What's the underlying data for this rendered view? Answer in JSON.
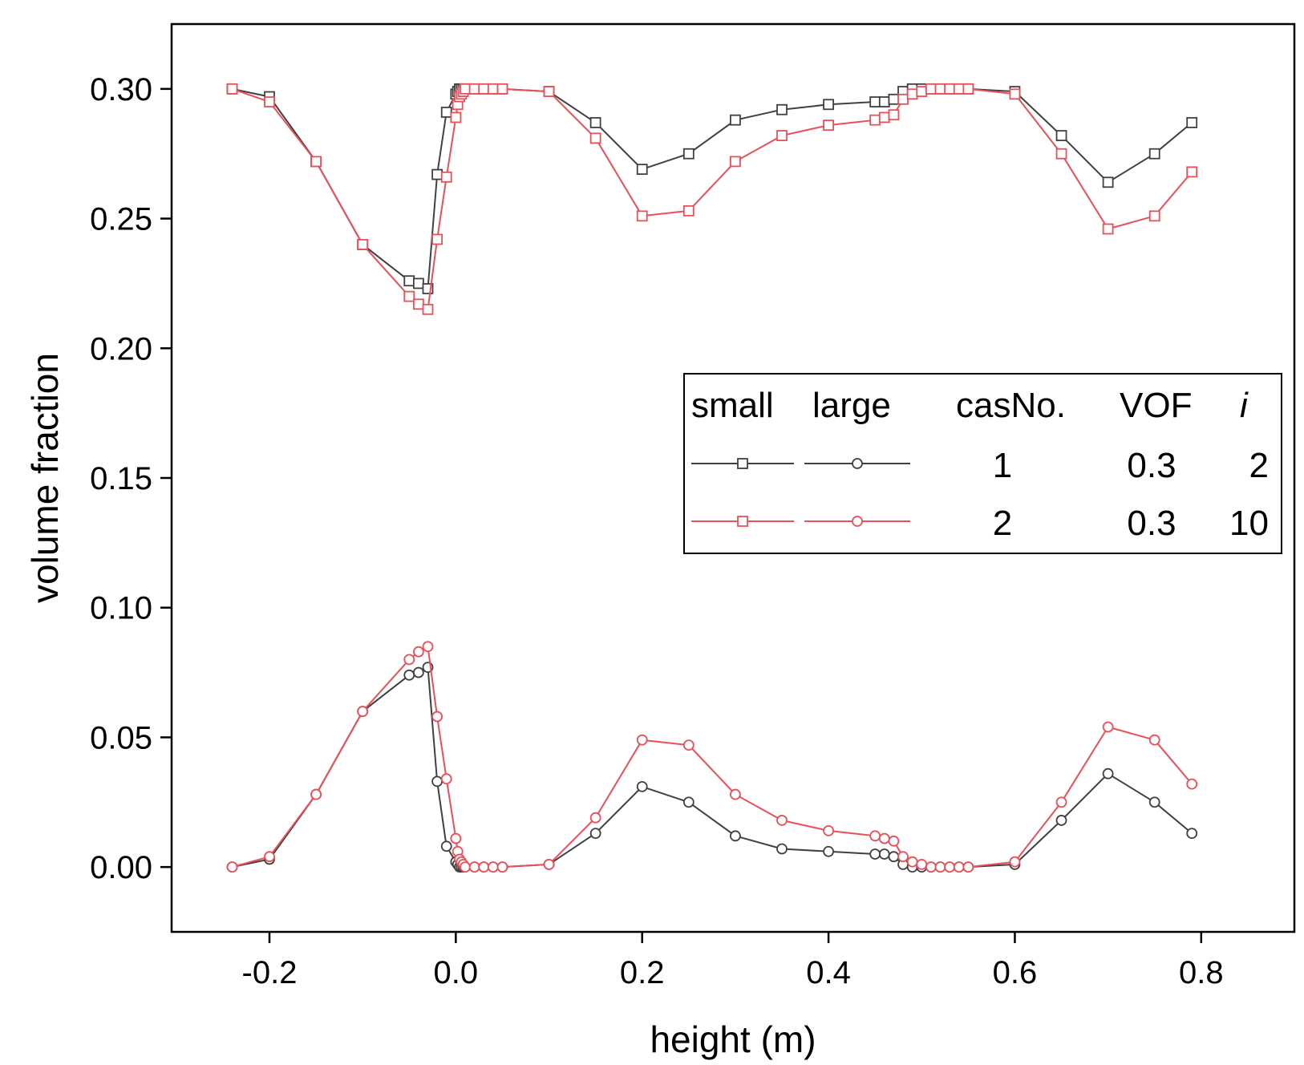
{
  "chart_data": {
    "type": "line",
    "xlabel": "height (m)",
    "ylabel": "volume fraction",
    "xlim": [
      -0.305,
      0.9
    ],
    "ylim": [
      -0.025,
      0.325
    ],
    "x_ticks": [
      -0.2,
      0.0,
      0.2,
      0.4,
      0.6,
      0.8
    ],
    "x_tick_labels": [
      "-0.2",
      "0.0",
      "0.2",
      "0.4",
      "0.6",
      "0.8"
    ],
    "y_ticks": [
      0.0,
      0.05,
      0.1,
      0.15,
      0.2,
      0.25,
      0.3
    ],
    "y_tick_labels": [
      "0.00",
      "0.05",
      "0.10",
      "0.15",
      "0.20",
      "0.25",
      "0.30"
    ],
    "legend": {
      "position": "center-right",
      "headers": {
        "small": "small",
        "large": "large",
        "case": "casNo.",
        "vof": "VOF",
        "i": "i"
      },
      "rows": [
        {
          "case": "1",
          "vof": "0.3",
          "i": "2"
        },
        {
          "case": "2",
          "vof": "0.3",
          "i": "10"
        }
      ]
    },
    "series": [
      {
        "name": "small case 1",
        "case": 1,
        "phase": "small",
        "marker": "square",
        "color": "#404040",
        "x": [
          -0.24,
          -0.2,
          -0.15,
          -0.1,
          -0.05,
          -0.04,
          -0.03,
          -0.02,
          -0.01,
          0.0,
          0.002,
          0.004,
          0.006,
          0.008,
          0.01,
          0.02,
          0.03,
          0.04,
          0.05,
          0.1,
          0.15,
          0.2,
          0.25,
          0.3,
          0.35,
          0.4,
          0.45,
          0.46,
          0.47,
          0.48,
          0.49,
          0.5,
          0.51,
          0.52,
          0.53,
          0.54,
          0.55,
          0.6,
          0.65,
          0.7,
          0.75,
          0.79
        ],
        "y": [
          0.3,
          0.297,
          0.272,
          0.24,
          0.226,
          0.225,
          0.223,
          0.267,
          0.291,
          0.298,
          0.299,
          0.3,
          0.3,
          0.3,
          0.3,
          0.3,
          0.3,
          0.3,
          0.3,
          0.299,
          0.287,
          0.269,
          0.275,
          0.288,
          0.292,
          0.294,
          0.295,
          0.295,
          0.296,
          0.299,
          0.3,
          0.3,
          0.3,
          0.3,
          0.3,
          0.3,
          0.3,
          0.299,
          0.282,
          0.264,
          0.275,
          0.287
        ]
      },
      {
        "name": "small case 2",
        "case": 2,
        "phase": "small",
        "marker": "square",
        "color": "#e8505a",
        "x": [
          -0.24,
          -0.2,
          -0.15,
          -0.1,
          -0.05,
          -0.04,
          -0.03,
          -0.02,
          -0.01,
          0.0,
          0.002,
          0.004,
          0.006,
          0.008,
          0.01,
          0.02,
          0.03,
          0.04,
          0.05,
          0.1,
          0.15,
          0.2,
          0.25,
          0.3,
          0.35,
          0.4,
          0.45,
          0.46,
          0.47,
          0.48,
          0.49,
          0.5,
          0.51,
          0.52,
          0.53,
          0.54,
          0.55,
          0.6,
          0.65,
          0.7,
          0.75,
          0.79
        ],
        "y": [
          0.3,
          0.295,
          0.272,
          0.24,
          0.22,
          0.217,
          0.215,
          0.242,
          0.266,
          0.289,
          0.294,
          0.297,
          0.298,
          0.299,
          0.3,
          0.3,
          0.3,
          0.3,
          0.3,
          0.299,
          0.281,
          0.251,
          0.253,
          0.272,
          0.282,
          0.286,
          0.288,
          0.289,
          0.29,
          0.296,
          0.298,
          0.299,
          0.3,
          0.3,
          0.3,
          0.3,
          0.3,
          0.298,
          0.275,
          0.246,
          0.251,
          0.268
        ]
      },
      {
        "name": "large case 1",
        "case": 1,
        "phase": "large",
        "marker": "circle",
        "color": "#404040",
        "x": [
          -0.24,
          -0.2,
          -0.15,
          -0.1,
          -0.05,
          -0.04,
          -0.03,
          -0.02,
          -0.01,
          0.0,
          0.002,
          0.004,
          0.006,
          0.008,
          0.01,
          0.02,
          0.03,
          0.04,
          0.05,
          0.1,
          0.15,
          0.2,
          0.25,
          0.3,
          0.35,
          0.4,
          0.45,
          0.46,
          0.47,
          0.48,
          0.49,
          0.5,
          0.51,
          0.52,
          0.53,
          0.54,
          0.55,
          0.6,
          0.65,
          0.7,
          0.75,
          0.79
        ],
        "y": [
          0.0,
          0.003,
          0.028,
          0.06,
          0.074,
          0.075,
          0.077,
          0.033,
          0.008,
          0.002,
          0.001,
          0.0,
          0.0,
          0.0,
          0.0,
          0.0,
          0.0,
          0.0,
          0.0,
          0.001,
          0.013,
          0.031,
          0.025,
          0.012,
          0.007,
          0.006,
          0.005,
          0.005,
          0.004,
          0.001,
          0.0,
          0.0,
          0.0,
          0.0,
          0.0,
          0.0,
          0.0,
          0.001,
          0.018,
          0.036,
          0.025,
          0.013
        ]
      },
      {
        "name": "large case 2",
        "case": 2,
        "phase": "large",
        "marker": "circle",
        "color": "#e8505a",
        "x": [
          -0.24,
          -0.2,
          -0.15,
          -0.1,
          -0.05,
          -0.04,
          -0.03,
          -0.02,
          -0.01,
          0.0,
          0.002,
          0.004,
          0.006,
          0.008,
          0.01,
          0.02,
          0.03,
          0.04,
          0.05,
          0.1,
          0.15,
          0.2,
          0.25,
          0.3,
          0.35,
          0.4,
          0.45,
          0.46,
          0.47,
          0.48,
          0.49,
          0.5,
          0.51,
          0.52,
          0.53,
          0.54,
          0.55,
          0.6,
          0.65,
          0.7,
          0.75,
          0.79
        ],
        "y": [
          0.0,
          0.004,
          0.028,
          0.06,
          0.08,
          0.083,
          0.085,
          0.058,
          0.034,
          0.011,
          0.006,
          0.003,
          0.002,
          0.001,
          0.0,
          0.0,
          0.0,
          0.0,
          0.0,
          0.001,
          0.019,
          0.049,
          0.047,
          0.028,
          0.018,
          0.014,
          0.012,
          0.011,
          0.01,
          0.004,
          0.002,
          0.001,
          0.0,
          0.0,
          0.0,
          0.0,
          0.0,
          0.002,
          0.025,
          0.054,
          0.049,
          0.032
        ]
      }
    ]
  }
}
